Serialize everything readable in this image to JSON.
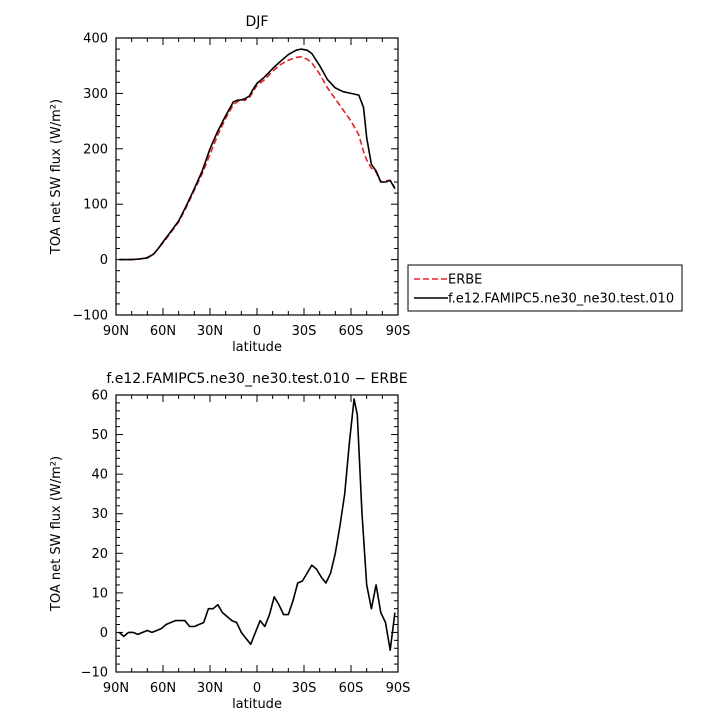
{
  "chart_data": [
    {
      "type": "line",
      "title": "DJF",
      "xlabel": "latitude",
      "ylabel": "TOA net SW flux (W/m²)",
      "xlim": [
        -90,
        90
      ],
      "ylim": [
        -100,
        400
      ],
      "x_ticks": [
        -90,
        -60,
        -30,
        0,
        30,
        60,
        90
      ],
      "x_tick_labels": [
        "90N",
        "60N",
        "30N",
        "0",
        "30S",
        "60S",
        "90S"
      ],
      "y_ticks": [
        -100,
        0,
        100,
        200,
        300,
        400
      ],
      "y_tick_labels": [
        "−100",
        "0",
        "100",
        "200",
        "300",
        "400"
      ],
      "grid": false,
      "legend": "right",
      "series": [
        {
          "name": "ERBE",
          "color": "#e8222b",
          "dash": "dashed",
          "x": [
            -88,
            -80,
            -75,
            -70,
            -66,
            -63,
            -60,
            -56,
            -50,
            -45,
            -40,
            -35,
            -30,
            -25,
            -20,
            -15,
            -12,
            -10,
            -8,
            -5,
            -2,
            0,
            5,
            10,
            15,
            20,
            25,
            28,
            32,
            35,
            40,
            45,
            50,
            55,
            60,
            65,
            68,
            70,
            73,
            76,
            79,
            82,
            85,
            88
          ],
          "y": [
            0,
            0,
            1,
            4,
            10,
            20,
            30,
            45,
            68,
            95,
            125,
            155,
            190,
            225,
            255,
            280,
            286,
            290,
            287,
            292,
            305,
            315,
            325,
            340,
            352,
            360,
            365,
            366,
            362,
            355,
            335,
            310,
            290,
            270,
            250,
            225,
            195,
            180,
            165,
            158,
            140,
            142,
            143,
            130
          ]
        },
        {
          "name": "f.e12.FAMIPC5.ne30_ne30.test.010",
          "color": "#000000",
          "dash": "solid",
          "x": [
            -88,
            -80,
            -75,
            -70,
            -66,
            -63,
            -60,
            -56,
            -50,
            -45,
            -40,
            -35,
            -30,
            -25,
            -20,
            -15,
            -12,
            -10,
            -8,
            -5,
            -2,
            0,
            5,
            10,
            15,
            20,
            25,
            28,
            32,
            35,
            40,
            45,
            50,
            55,
            60,
            65,
            68,
            70,
            73,
            76,
            79,
            82,
            85,
            88
          ],
          "y": [
            0,
            0,
            1,
            3,
            10,
            20,
            32,
            47,
            70,
            98,
            128,
            160,
            200,
            232,
            260,
            285,
            288,
            288,
            290,
            295,
            310,
            318,
            330,
            345,
            358,
            370,
            378,
            380,
            378,
            372,
            350,
            325,
            310,
            303,
            300,
            297,
            275,
            220,
            172,
            160,
            140,
            140,
            143,
            128
          ]
        }
      ]
    },
    {
      "type": "line",
      "title": "f.e12.FAMIPC5.ne30_ne30.test.010 − ERBE",
      "xlabel": "latitude",
      "ylabel": "TOA net SW flux (W/m²)",
      "xlim": [
        -90,
        90
      ],
      "ylim": [
        -10,
        60
      ],
      "x_ticks": [
        -90,
        -60,
        -30,
        0,
        30,
        60,
        90
      ],
      "x_tick_labels": [
        "90N",
        "60N",
        "30N",
        "0",
        "30S",
        "60S",
        "90S"
      ],
      "y_ticks": [
        -10,
        0,
        10,
        20,
        30,
        40,
        50,
        60
      ],
      "y_tick_labels": [
        "−10",
        "0",
        "10",
        "20",
        "30",
        "40",
        "50",
        "60"
      ],
      "grid": false,
      "series": [
        {
          "color": "#000000",
          "dash": "solid",
          "x": [
            -88,
            -85,
            -82,
            -79,
            -76,
            -73,
            -70,
            -67,
            -64,
            -61,
            -58,
            -55,
            -52,
            -49,
            -46,
            -43,
            -40,
            -37,
            -34,
            -31,
            -28,
            -25,
            -22,
            -19,
            -16,
            -13,
            -10,
            -7,
            -4,
            -1,
            2,
            5,
            8,
            11,
            14,
            17,
            20,
            23,
            26,
            29,
            32,
            35,
            38,
            41,
            44,
            47,
            50,
            53,
            56,
            59,
            62,
            64,
            67,
            70,
            73,
            76,
            79,
            82,
            85,
            88
          ],
          "y": [
            0,
            -1,
            0,
            0,
            -0.5,
            0,
            0.5,
            0,
            0.5,
            1,
            2,
            2.5,
            3,
            3,
            3,
            1.5,
            1.5,
            2,
            2.5,
            6,
            6,
            7,
            5,
            4,
            3,
            2.5,
            0,
            -1.5,
            -3,
            0,
            3,
            1.5,
            4.5,
            9,
            7,
            4.5,
            4.5,
            8,
            12.5,
            13,
            15,
            17,
            16,
            14,
            12.5,
            15,
            20,
            27,
            35,
            48,
            59,
            55,
            30,
            12,
            6,
            12,
            5,
            2.5,
            -4.5,
            5
          ]
        }
      ]
    }
  ]
}
